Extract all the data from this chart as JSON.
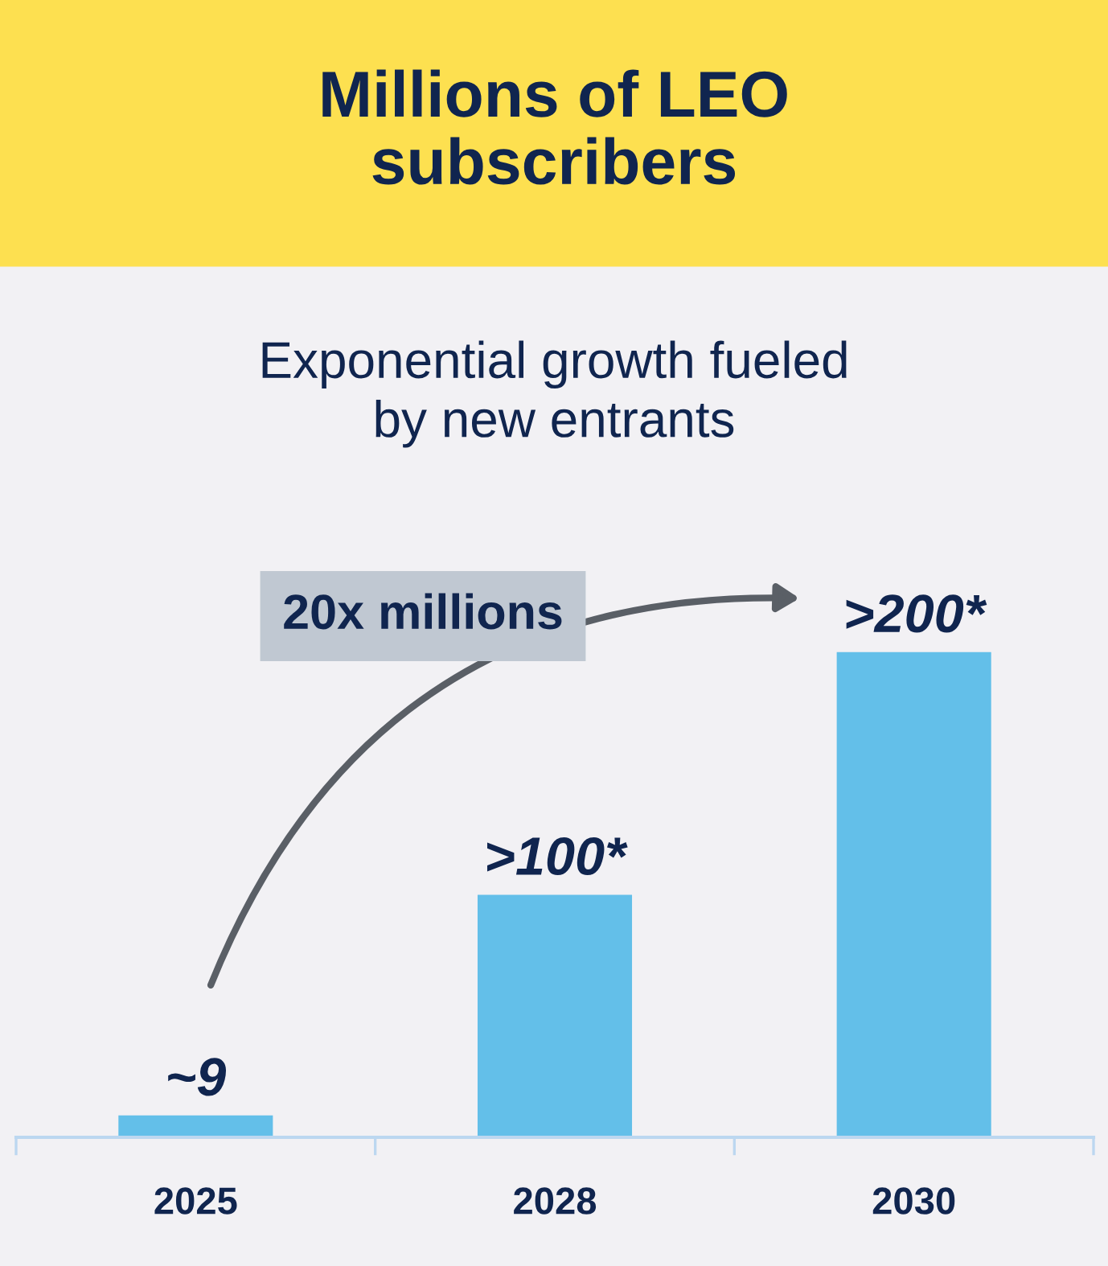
{
  "chart_data": {
    "type": "bar",
    "title": "Millions of LEO\nsubscribers",
    "subtitle": "Exponential growth fueled\nby new entrants",
    "categories": [
      "2025",
      "2028",
      "2030"
    ],
    "values": [
      9,
      100,
      200
    ],
    "color": "#63bfe9",
    "value_labels": [
      "~9",
      ">100*",
      ">200*"
    ],
    "annotations": [
      "20x millions"
    ]
  }
}
